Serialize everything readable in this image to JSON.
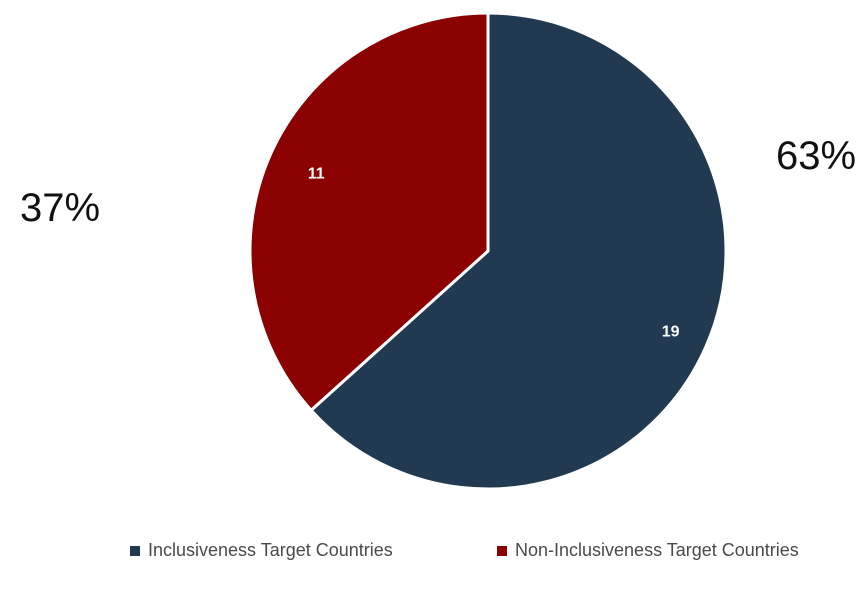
{
  "chart_data": {
    "type": "pie",
    "categories": [
      "Inclusiveness Target Countries",
      "Non-Inclusiveness Target Countries"
    ],
    "values": [
      19,
      11
    ],
    "data_labels": [
      "19",
      "11"
    ],
    "percent_labels": [
      "63%",
      "37%"
    ],
    "colors": [
      "#213a52",
      "#8b0000"
    ],
    "legend_position": "bottom",
    "start_angle": "top, clockwise"
  }
}
